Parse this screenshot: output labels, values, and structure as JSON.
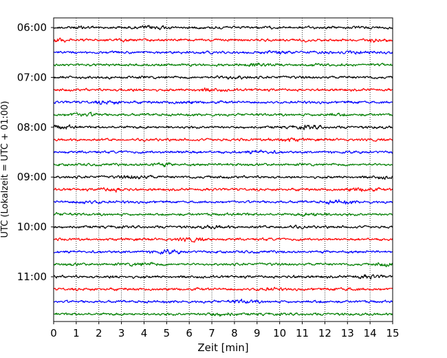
{
  "chart_data": {
    "type": "line",
    "title": "",
    "xlabel": "Zeit  [min]",
    "ylabel": "UTC (Lokalzeit = UTC + 01:00)",
    "xlim": [
      0,
      15
    ],
    "xticks": [
      0,
      1,
      2,
      3,
      4,
      5,
      6,
      7,
      8,
      9,
      10,
      11,
      12,
      13,
      14,
      15
    ],
    "ytick_labels": [
      "06:00",
      "07:00",
      "08:00",
      "09:00",
      "10:00",
      "11:00"
    ],
    "trace_interval_minutes": 15,
    "first_trace": "06:00",
    "trace_count": 24,
    "grid": "vertical dotted",
    "trace_colors": [
      "#000000",
      "#ff0000",
      "#0000ff",
      "#007f00"
    ]
  }
}
